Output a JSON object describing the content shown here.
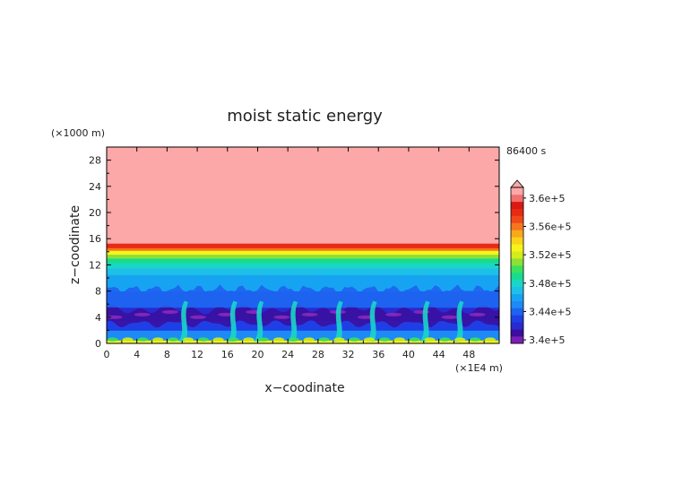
{
  "chart_data": {
    "type": "heatmap",
    "title": "moist static energy",
    "xlabel": "x−coodinate",
    "ylabel": "z−coodinate",
    "x_unit": "(×1E4 m)",
    "y_unit": "(×1000 m)",
    "time_label": "86400 s",
    "xlim": [
      0,
      52
    ],
    "ylim": [
      0,
      30
    ],
    "x_ticks": [
      0,
      4,
      8,
      12,
      16,
      20,
      24,
      28,
      32,
      36,
      40,
      44,
      48
    ],
    "y_ticks": [
      0,
      4,
      8,
      12,
      16,
      20,
      24,
      28
    ],
    "colorbar": {
      "levels": [
        340000,
        341000,
        342000,
        343000,
        344000,
        345000,
        346000,
        347000,
        348000,
        349000,
        350000,
        351000,
        352000,
        353000,
        354000,
        355000,
        356000,
        357000,
        358000,
        359000,
        360000,
        361000
      ],
      "labels": [
        "3.4e+5",
        "3.44e+5",
        "3.48e+5",
        "3.52e+5",
        "3.56e+5",
        "3.6e+5"
      ],
      "label_values": [
        340000,
        344000,
        348000,
        352000,
        356000,
        360000
      ],
      "colors": [
        "#7a1fb5",
        "#3b0e9e",
        "#2a2ad0",
        "#1f3fe6",
        "#1e63f0",
        "#1d8af5",
        "#16a4f2",
        "#1ec0e8",
        "#1ad6c8",
        "#18dc8c",
        "#3de05c",
        "#8ce036",
        "#d4ec1a",
        "#f6f41a",
        "#f8d31a",
        "#f8a81c",
        "#f5761e",
        "#f04818",
        "#e82a14",
        "#d91a12",
        "#f07070",
        "#fca8a8"
      ]
    },
    "layers": [
      {
        "z_from": 0,
        "z_to": 0.5,
        "value": 353000
      },
      {
        "z_from": 0.5,
        "z_to": 2,
        "value": 345000
      },
      {
        "z_from": 2,
        "z_to": 3.5,
        "value": 343000
      },
      {
        "z_from": 3.5,
        "z_to": 5.5,
        "value": 342500
      },
      {
        "z_from": 5.5,
        "z_to": 8,
        "value": 344500
      },
      {
        "z_from": 8,
        "z_to": 10.5,
        "value": 346000
      },
      {
        "z_from": 10.5,
        "z_to": 11.5,
        "value": 347000
      },
      {
        "z_from": 11.5,
        "z_to": 12.3,
        "value": 348000
      },
      {
        "z_from": 12.3,
        "z_to": 13,
        "value": 349500
      },
      {
        "z_from": 13,
        "z_to": 13.6,
        "value": 351500
      },
      {
        "z_from": 13.6,
        "z_to": 14.2,
        "value": 353500
      },
      {
        "z_from": 14.2,
        "z_to": 14.6,
        "value": 356000
      },
      {
        "z_from": 14.6,
        "z_to": 15.3,
        "value": 358500
      },
      {
        "z_from": 15.3,
        "z_to": 30,
        "value": 361000
      }
    ],
    "plumes_x": [
      10,
      16.5,
      20,
      24.5,
      30.5,
      35,
      42,
      46.5
    ]
  }
}
